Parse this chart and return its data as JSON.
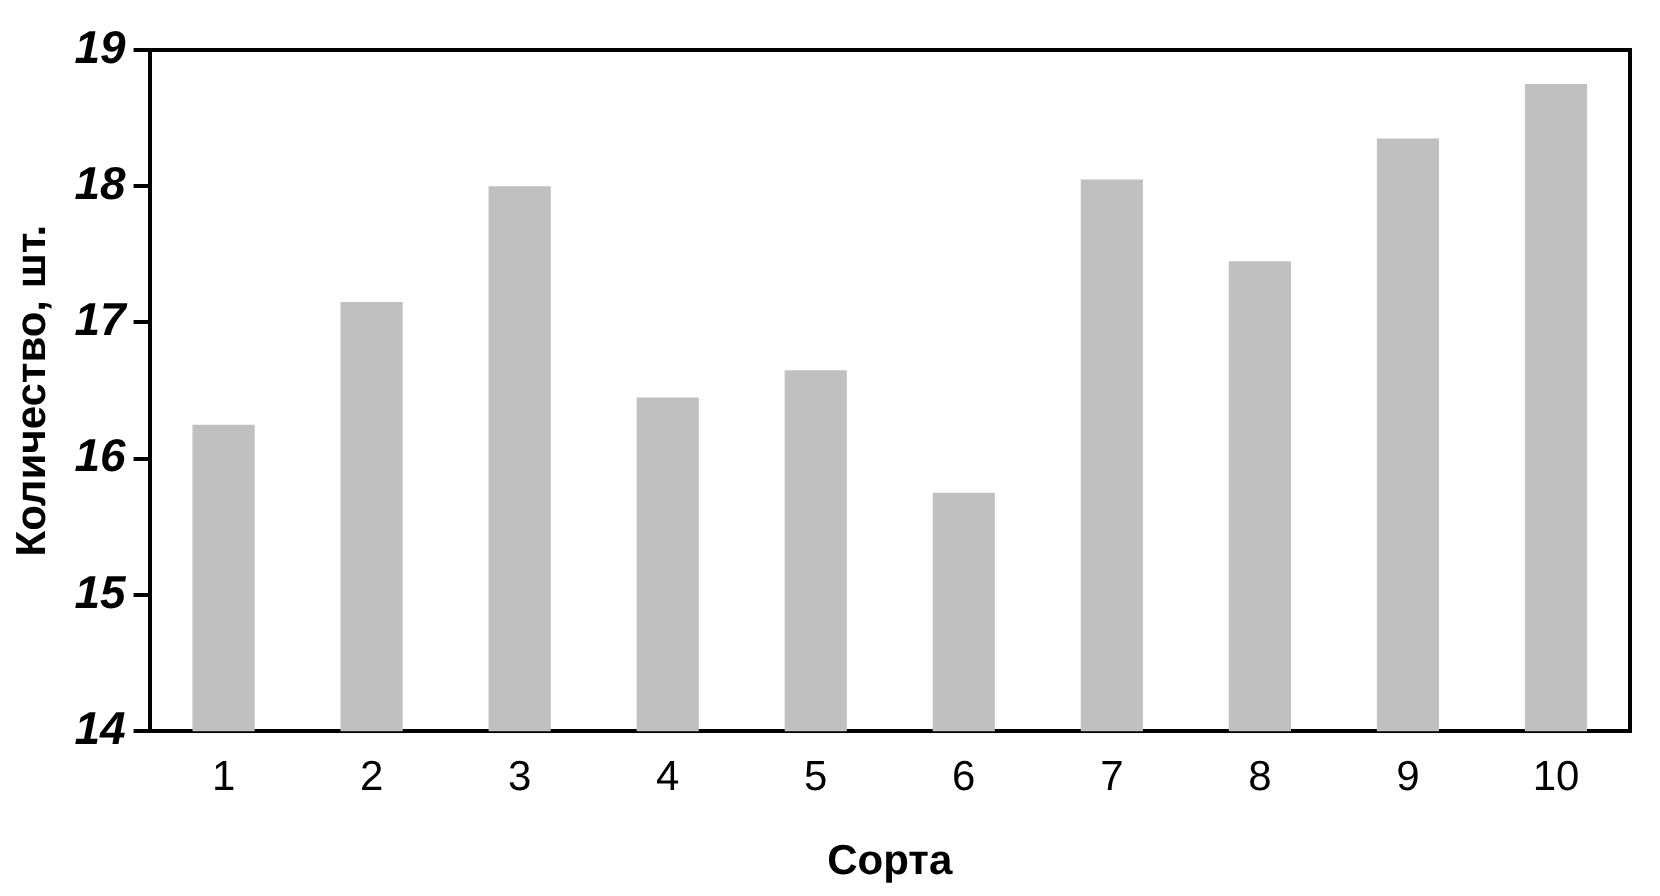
{
  "chart_data": {
    "type": "bar",
    "xlabel": "Сорта",
    "ylabel": "Количество, шт.",
    "categories": [
      "1",
      "2",
      "3",
      "4",
      "5",
      "6",
      "7",
      "8",
      "9",
      "10"
    ],
    "values": [
      16.25,
      17.15,
      18,
      16.45,
      16.65,
      15.75,
      18.05,
      17.45,
      18.35,
      18.75
    ],
    "color": "#c0c0c0",
    "ylim": [
      14,
      19
    ],
    "yticks": [
      14,
      15,
      16,
      17,
      18,
      19
    ],
    "grid": false,
    "legend": false
  }
}
